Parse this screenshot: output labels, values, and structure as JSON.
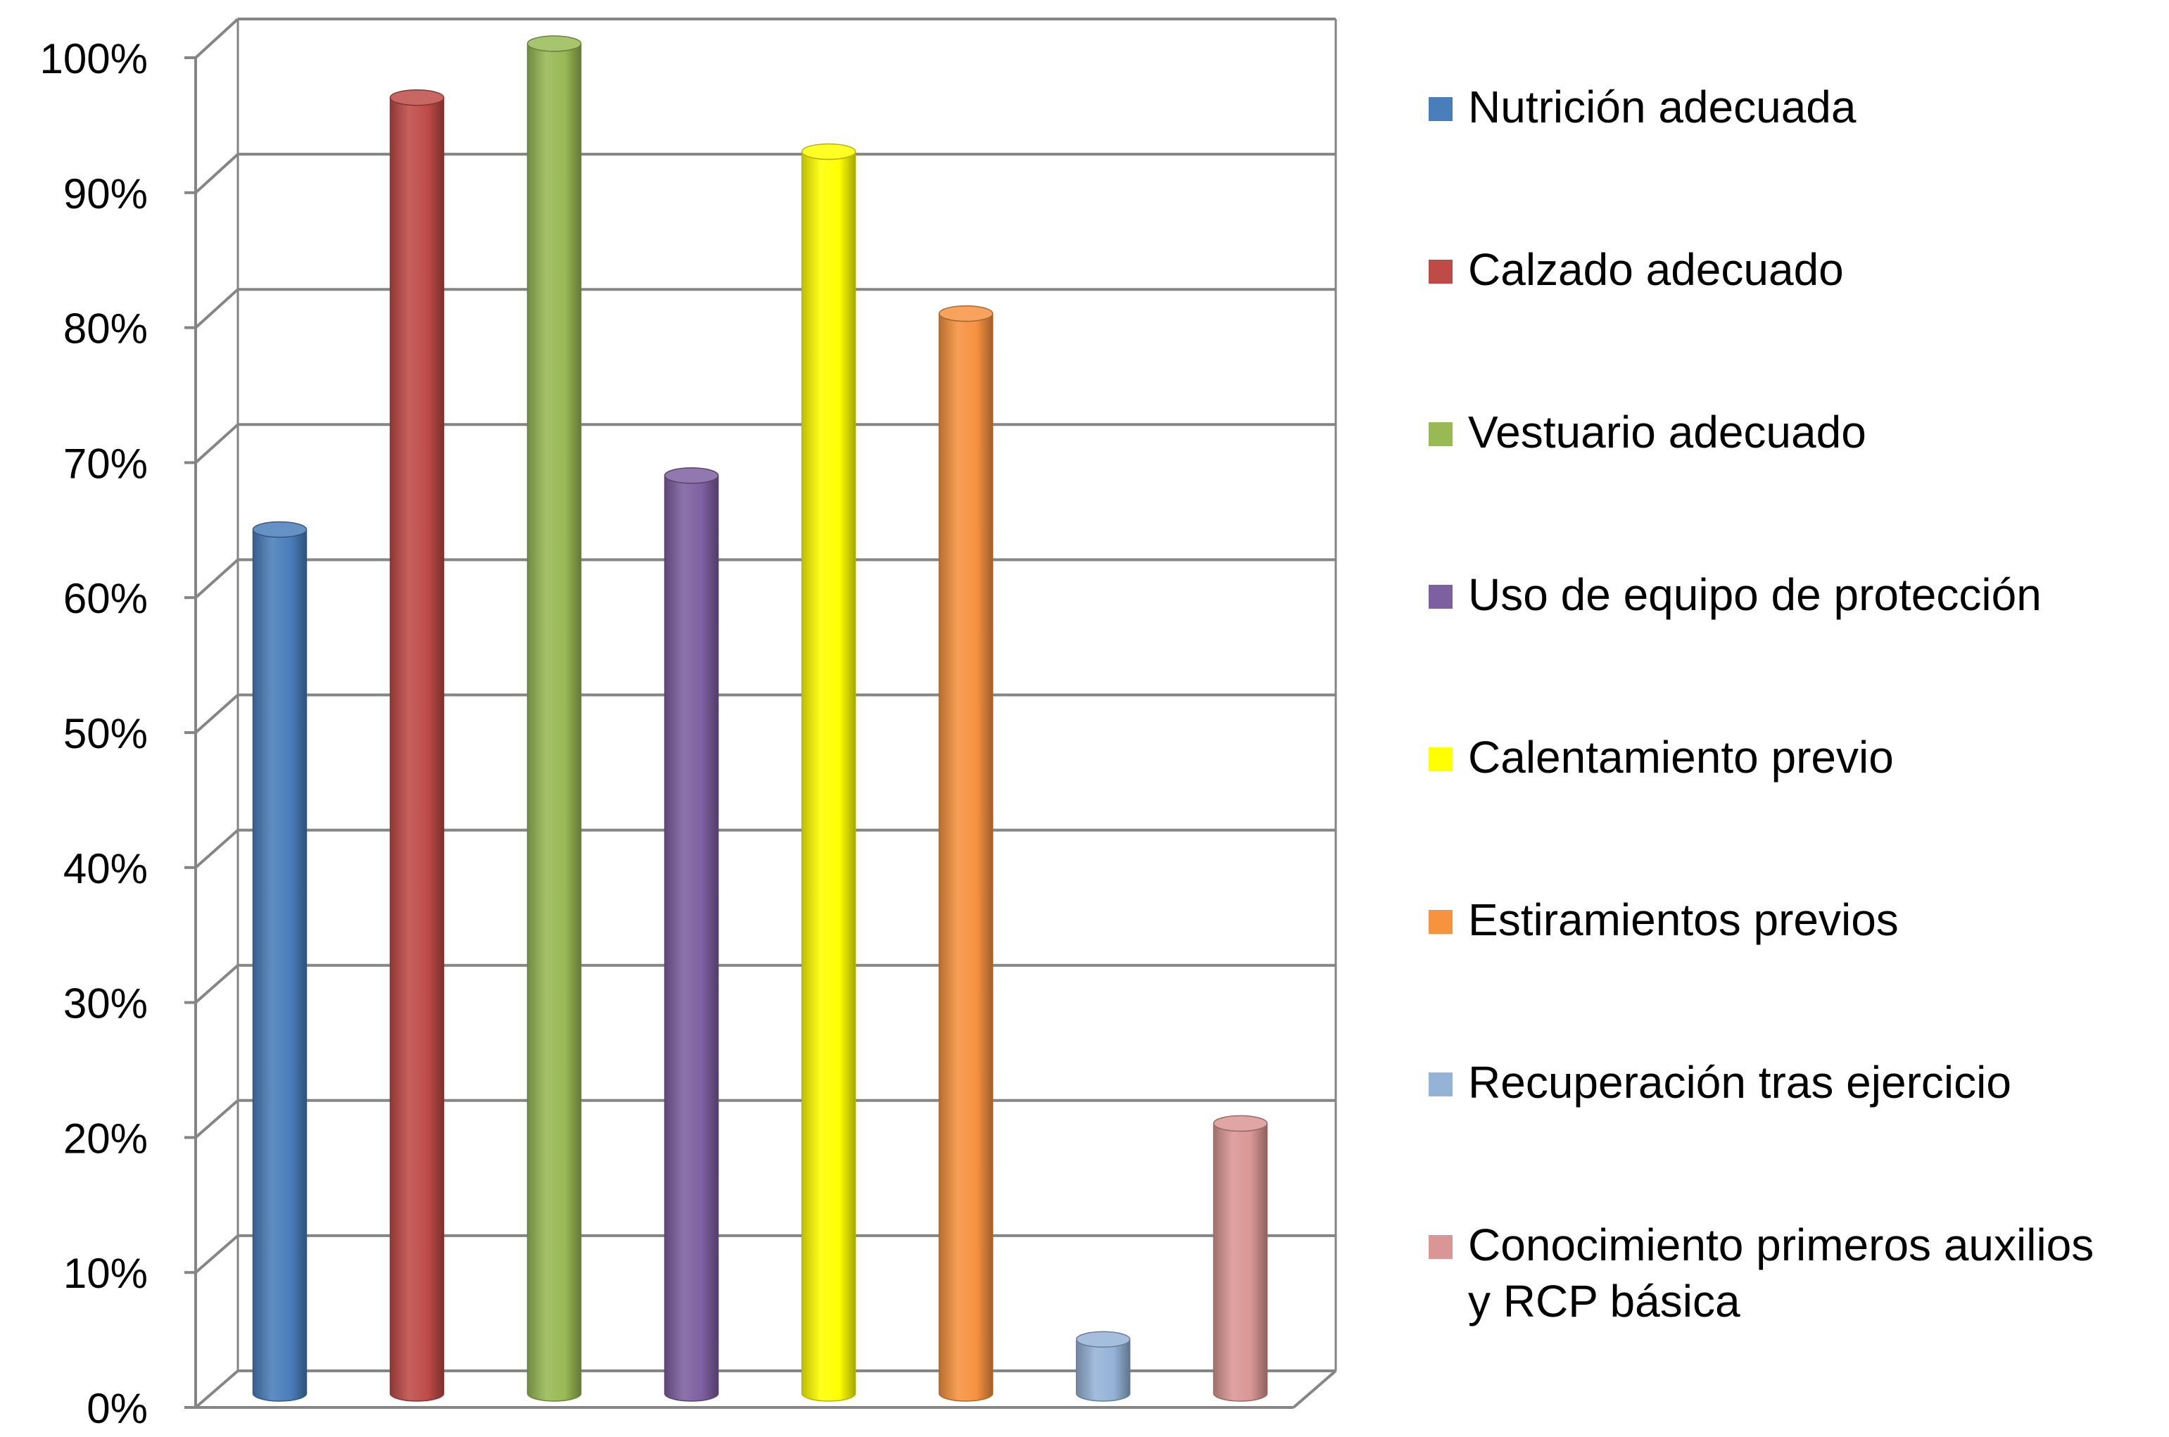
{
  "chart_data": {
    "type": "bar",
    "style": "3d-cylinder",
    "categories": [
      "Nutrición adecuada",
      "Calzado adecuado",
      "Vestuario adecuado",
      "Uso de equipo de protección",
      "Calentamiento previo",
      "Estiramientos previos",
      "Recuperación tras ejercicio",
      "Conocimiento primeros auxilios\ny RCP básica"
    ],
    "values": [
      64,
      96,
      100,
      68,
      92,
      80,
      4,
      20
    ],
    "colors": [
      "#4a7ebb",
      "#be4b48",
      "#98b954",
      "#7d60a0",
      "#ffff00",
      "#f69240",
      "#95b3d7",
      "#d99694"
    ],
    "ylim": [
      0,
      100
    ],
    "yticks": [
      "0%",
      "10%",
      "20%",
      "30%",
      "40%",
      "50%",
      "60%",
      "70%",
      "80%",
      "90%",
      "100%"
    ],
    "grid": true,
    "legend_position": "right",
    "title": "",
    "xlabel": "",
    "ylabel": ""
  }
}
